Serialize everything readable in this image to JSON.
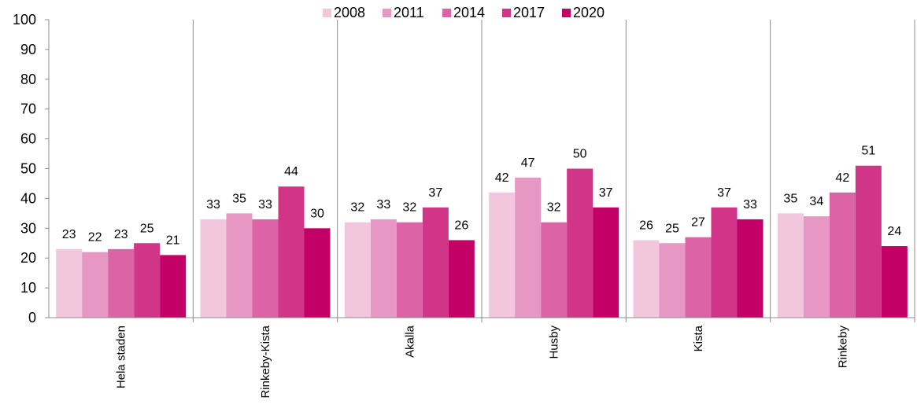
{
  "chart_data": {
    "type": "bar",
    "categories": [
      "Hela staden",
      "Rinkeby-Kista",
      "Akalla",
      "Husby",
      "Kista",
      "Rinkeby"
    ],
    "series": [
      {
        "name": "2008",
        "color": "#f2c6dc",
        "values": [
          23,
          33,
          32,
          42,
          26,
          35
        ]
      },
      {
        "name": "2011",
        "color": "#e797c3",
        "values": [
          22,
          35,
          33,
          47,
          25,
          34
        ]
      },
      {
        "name": "2014",
        "color": "#dc64a6",
        "values": [
          23,
          33,
          32,
          32,
          27,
          42
        ]
      },
      {
        "name": "2017",
        "color": "#d13587",
        "values": [
          25,
          44,
          37,
          50,
          37,
          51
        ]
      },
      {
        "name": "2020",
        "color": "#c20066",
        "values": [
          21,
          30,
          26,
          37,
          33,
          24
        ]
      }
    ],
    "ylim": [
      0,
      100
    ],
    "yticks": [
      0,
      10,
      20,
      30,
      40,
      50,
      60,
      70,
      80,
      90,
      100
    ],
    "grid": "vertical-category-separators",
    "legend_position": "top",
    "title": "",
    "xlabel": "",
    "ylabel": ""
  }
}
